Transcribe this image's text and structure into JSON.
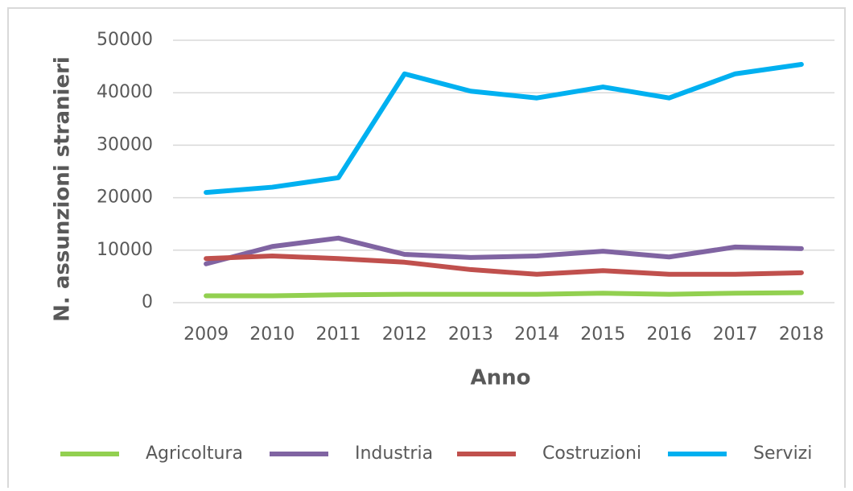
{
  "chart_data": {
    "type": "line",
    "x_label": "Anno",
    "y_label": "N. assunzioni stranieri",
    "categories": [
      "2009",
      "2010",
      "2011",
      "2012",
      "2013",
      "2014",
      "2015",
      "2016",
      "2017",
      "2018"
    ],
    "series": [
      {
        "name": "Agricoltura",
        "color": "#92d050",
        "values": [
          1300,
          1300,
          1500,
          1600,
          1600,
          1600,
          1800,
          1600,
          1800,
          1900
        ]
      },
      {
        "name": "Industria",
        "color": "#8064a2",
        "values": [
          7400,
          10700,
          12300,
          9200,
          8600,
          8900,
          9800,
          8700,
          10600,
          10300
        ]
      },
      {
        "name": "Costruzioni",
        "color": "#c0504d",
        "values": [
          8400,
          8900,
          8400,
          7700,
          6300,
          5400,
          6100,
          5400,
          5400,
          5700
        ]
      },
      {
        "name": "Servizi",
        "color": "#00b0f0",
        "values": [
          21000,
          22000,
          23800,
          43600,
          40300,
          39000,
          41100,
          39000,
          43600,
          45400
        ]
      }
    ],
    "ylim": [
      0,
      50000
    ],
    "yticks": [
      0,
      10000,
      20000,
      30000,
      40000,
      50000
    ],
    "grid": true,
    "legend": "bottom"
  }
}
